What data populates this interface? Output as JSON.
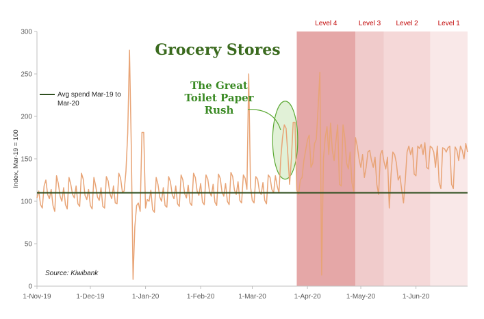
{
  "chart_data": {
    "type": "line",
    "title": "Grocery Stores",
    "ylabel": "Index, Mar-19 = 100",
    "xlabel": "",
    "ylim": [
      0,
      300
    ],
    "yticks": [
      0,
      50,
      100,
      150,
      200,
      250,
      300
    ],
    "x_start": "2019-11-01",
    "x_end": "2020-06-30",
    "xticks": [
      {
        "date": "2019-11-01",
        "label": "1-Nov-19"
      },
      {
        "date": "2019-12-01",
        "label": "1-Dec-19"
      },
      {
        "date": "2020-01-01",
        "label": "1-Jan-20"
      },
      {
        "date": "2020-02-01",
        "label": "1-Feb-20"
      },
      {
        "date": "2020-03-01",
        "label": "1-Mar-20"
      },
      {
        "date": "2020-04-01",
        "label": "1-Apr-20"
      },
      {
        "date": "2020-05-01",
        "label": "1-May-20"
      },
      {
        "date": "2020-06-01",
        "label": "1-Jun-20"
      }
    ],
    "grid": false,
    "series": [
      {
        "name": "",
        "color": "#e8a476",
        "points": [
          [
            "2019-11-01",
            104
          ],
          [
            "2019-11-02",
            112
          ],
          [
            "2019-11-03",
            96
          ],
          [
            "2019-11-04",
            92
          ],
          [
            "2019-11-05",
            118
          ],
          [
            "2019-11-06",
            125
          ],
          [
            "2019-11-07",
            108
          ],
          [
            "2019-11-08",
            103
          ],
          [
            "2019-11-09",
            114
          ],
          [
            "2019-11-10",
            95
          ],
          [
            "2019-11-11",
            88
          ],
          [
            "2019-11-12",
            130
          ],
          [
            "2019-11-13",
            121
          ],
          [
            "2019-11-14",
            106
          ],
          [
            "2019-11-15",
            100
          ],
          [
            "2019-11-16",
            116
          ],
          [
            "2019-11-17",
            96
          ],
          [
            "2019-11-18",
            91
          ],
          [
            "2019-11-19",
            128
          ],
          [
            "2019-11-20",
            120
          ],
          [
            "2019-11-21",
            108
          ],
          [
            "2019-11-22",
            104
          ],
          [
            "2019-11-23",
            118
          ],
          [
            "2019-11-24",
            97
          ],
          [
            "2019-11-25",
            94
          ],
          [
            "2019-11-26",
            133
          ],
          [
            "2019-11-27",
            126
          ],
          [
            "2019-11-28",
            107
          ],
          [
            "2019-11-29",
            102
          ],
          [
            "2019-11-30",
            114
          ],
          [
            "2019-12-01",
            95
          ],
          [
            "2019-12-02",
            91
          ],
          [
            "2019-12-03",
            128
          ],
          [
            "2019-12-04",
            118
          ],
          [
            "2019-12-05",
            105
          ],
          [
            "2019-12-06",
            101
          ],
          [
            "2019-12-07",
            116
          ],
          [
            "2019-12-08",
            94
          ],
          [
            "2019-12-09",
            92
          ],
          [
            "2019-12-10",
            129
          ],
          [
            "2019-12-11",
            124
          ],
          [
            "2019-12-12",
            109
          ],
          [
            "2019-12-13",
            103
          ],
          [
            "2019-12-14",
            118
          ],
          [
            "2019-12-15",
            98
          ],
          [
            "2019-12-16",
            97
          ],
          [
            "2019-12-17",
            133
          ],
          [
            "2019-12-18",
            127
          ],
          [
            "2019-12-19",
            111
          ],
          [
            "2019-12-20",
            112
          ],
          [
            "2019-12-21",
            135
          ],
          [
            "2019-12-22",
            180
          ],
          [
            "2019-12-23",
            278
          ],
          [
            "2019-12-24",
            165
          ],
          [
            "2019-12-25",
            8
          ],
          [
            "2019-12-26",
            70
          ],
          [
            "2019-12-27",
            95
          ],
          [
            "2019-12-28",
            98
          ],
          [
            "2019-12-29",
            88
          ],
          [
            "2019-12-30",
            181
          ],
          [
            "2019-12-31",
            181
          ],
          [
            "2020-01-01",
            92
          ],
          [
            "2020-01-02",
            102
          ],
          [
            "2020-01-03",
            100
          ],
          [
            "2020-01-04",
            113
          ],
          [
            "2020-01-05",
            90
          ],
          [
            "2020-01-06",
            87
          ],
          [
            "2020-01-07",
            128
          ],
          [
            "2020-01-08",
            120
          ],
          [
            "2020-01-09",
            105
          ],
          [
            "2020-01-10",
            100
          ],
          [
            "2020-01-11",
            116
          ],
          [
            "2020-01-12",
            95
          ],
          [
            "2020-01-13",
            93
          ],
          [
            "2020-01-14",
            129
          ],
          [
            "2020-01-15",
            123
          ],
          [
            "2020-01-16",
            108
          ],
          [
            "2020-01-17",
            103
          ],
          [
            "2020-01-18",
            118
          ],
          [
            "2020-01-19",
            97
          ],
          [
            "2020-01-20",
            94
          ],
          [
            "2020-01-21",
            131
          ],
          [
            "2020-01-22",
            125
          ],
          [
            "2020-01-23",
            109
          ],
          [
            "2020-01-24",
            104
          ],
          [
            "2020-01-25",
            119
          ],
          [
            "2020-01-26",
            98
          ],
          [
            "2020-01-27",
            95
          ],
          [
            "2020-01-28",
            133
          ],
          [
            "2020-01-29",
            128
          ],
          [
            "2020-01-30",
            112
          ],
          [
            "2020-01-31",
            107
          ],
          [
            "2020-02-01",
            121
          ],
          [
            "2020-02-02",
            99
          ],
          [
            "2020-02-03",
            96
          ],
          [
            "2020-02-04",
            131
          ],
          [
            "2020-02-05",
            126
          ],
          [
            "2020-02-06",
            111
          ],
          [
            "2020-02-07",
            106
          ],
          [
            "2020-02-08",
            120
          ],
          [
            "2020-02-09",
            99
          ],
          [
            "2020-02-10",
            95
          ],
          [
            "2020-02-11",
            132
          ],
          [
            "2020-02-12",
            127
          ],
          [
            "2020-02-13",
            111
          ],
          [
            "2020-02-14",
            106
          ],
          [
            "2020-02-15",
            121
          ],
          [
            "2020-02-16",
            100
          ],
          [
            "2020-02-17",
            96
          ],
          [
            "2020-02-18",
            134
          ],
          [
            "2020-02-19",
            129
          ],
          [
            "2020-02-20",
            113
          ],
          [
            "2020-02-21",
            108
          ],
          [
            "2020-02-22",
            123
          ],
          [
            "2020-02-23",
            101
          ],
          [
            "2020-02-24",
            98
          ],
          [
            "2020-02-25",
            131
          ],
          [
            "2020-02-26",
            127
          ],
          [
            "2020-02-27",
            114
          ],
          [
            "2020-02-28",
            250
          ],
          [
            "2020-02-29",
            118
          ],
          [
            "2020-03-01",
            101
          ],
          [
            "2020-03-02",
            98
          ],
          [
            "2020-03-03",
            129
          ],
          [
            "2020-03-04",
            126
          ],
          [
            "2020-03-05",
            112
          ],
          [
            "2020-03-06",
            108
          ],
          [
            "2020-03-07",
            122
          ],
          [
            "2020-03-08",
            101
          ],
          [
            "2020-03-09",
            97
          ],
          [
            "2020-03-10",
            131
          ],
          [
            "2020-03-11",
            128
          ],
          [
            "2020-03-12",
            114
          ],
          [
            "2020-03-13",
            110
          ],
          [
            "2020-03-14",
            130
          ],
          [
            "2020-03-15",
            118
          ],
          [
            "2020-03-16",
            110
          ],
          [
            "2020-03-17",
            150
          ],
          [
            "2020-03-18",
            175
          ],
          [
            "2020-03-19",
            190
          ],
          [
            "2020-03-20",
            186
          ],
          [
            "2020-03-21",
            155
          ],
          [
            "2020-03-22",
            120
          ],
          [
            "2020-03-23",
            150
          ],
          [
            "2020-03-24",
            193
          ],
          [
            "2020-03-25",
            193
          ],
          [
            "2020-03-26",
            113
          ],
          [
            "2020-03-27",
            108
          ],
          [
            "2020-03-28",
            125
          ],
          [
            "2020-03-29",
            128
          ],
          [
            "2020-03-30",
            148
          ],
          [
            "2020-03-31",
            160
          ],
          [
            "2020-04-01",
            172
          ],
          [
            "2020-04-02",
            178
          ],
          [
            "2020-04-03",
            140
          ],
          [
            "2020-04-04",
            145
          ],
          [
            "2020-04-05",
            168
          ],
          [
            "2020-04-06",
            173
          ],
          [
            "2020-04-07",
            210
          ],
          [
            "2020-04-08",
            252
          ],
          [
            "2020-04-09",
            13
          ],
          [
            "2020-04-10",
            150
          ],
          [
            "2020-04-11",
            175
          ],
          [
            "2020-04-12",
            188
          ],
          [
            "2020-04-13",
            155
          ],
          [
            "2020-04-14",
            192
          ],
          [
            "2020-04-15",
            160
          ],
          [
            "2020-04-16",
            148
          ],
          [
            "2020-04-17",
            170
          ],
          [
            "2020-04-18",
            190
          ],
          [
            "2020-04-19",
            120
          ],
          [
            "2020-04-20",
            118
          ],
          [
            "2020-04-21",
            190
          ],
          [
            "2020-04-22",
            175
          ],
          [
            "2020-04-23",
            145
          ],
          [
            "2020-04-24",
            138
          ],
          [
            "2020-04-25",
            158
          ],
          [
            "2020-04-26",
            122
          ],
          [
            "2020-04-27",
            112
          ],
          [
            "2020-04-28",
            175
          ],
          [
            "2020-04-29",
            165
          ],
          [
            "2020-04-30",
            150
          ],
          [
            "2020-05-01",
            140
          ],
          [
            "2020-05-02",
            155
          ],
          [
            "2020-05-03",
            128
          ],
          [
            "2020-05-04",
            140
          ],
          [
            "2020-05-05",
            158
          ],
          [
            "2020-05-06",
            160
          ],
          [
            "2020-05-07",
            148
          ],
          [
            "2020-05-08",
            140
          ],
          [
            "2020-05-09",
            152
          ],
          [
            "2020-05-10",
            120
          ],
          [
            "2020-05-11",
            108
          ],
          [
            "2020-05-12",
            155
          ],
          [
            "2020-05-13",
            160
          ],
          [
            "2020-05-14",
            147
          ],
          [
            "2020-05-15",
            138
          ],
          [
            "2020-05-16",
            152
          ],
          [
            "2020-05-17",
            92
          ],
          [
            "2020-05-18",
            132
          ],
          [
            "2020-05-19",
            158
          ],
          [
            "2020-05-20",
            155
          ],
          [
            "2020-05-21",
            145
          ],
          [
            "2020-05-22",
            125
          ],
          [
            "2020-05-23",
            130
          ],
          [
            "2020-05-24",
            113
          ],
          [
            "2020-05-25",
            98
          ],
          [
            "2020-05-26",
            125
          ],
          [
            "2020-05-27",
            158
          ],
          [
            "2020-05-28",
            165
          ],
          [
            "2020-05-29",
            155
          ],
          [
            "2020-05-30",
            163
          ],
          [
            "2020-05-31",
            132
          ],
          [
            "2020-06-01",
            130
          ],
          [
            "2020-06-02",
            165
          ],
          [
            "2020-06-03",
            162
          ],
          [
            "2020-06-04",
            167
          ],
          [
            "2020-06-05",
            155
          ],
          [
            "2020-06-06",
            169
          ],
          [
            "2020-06-07",
            140
          ],
          [
            "2020-06-08",
            138
          ],
          [
            "2020-06-09",
            165
          ],
          [
            "2020-06-10",
            163
          ],
          [
            "2020-06-11",
            158
          ],
          [
            "2020-06-12",
            140
          ],
          [
            "2020-06-13",
            165
          ],
          [
            "2020-06-14",
            122
          ],
          [
            "2020-06-15",
            115
          ],
          [
            "2020-06-16",
            163
          ],
          [
            "2020-06-17",
            162
          ],
          [
            "2020-06-18",
            158
          ],
          [
            "2020-06-19",
            163
          ],
          [
            "2020-06-20",
            165
          ],
          [
            "2020-06-21",
            120
          ],
          [
            "2020-06-22",
            115
          ],
          [
            "2020-06-23",
            164
          ],
          [
            "2020-06-24",
            160
          ],
          [
            "2020-06-25",
            148
          ],
          [
            "2020-06-26",
            165
          ],
          [
            "2020-06-27",
            160
          ],
          [
            "2020-06-28",
            150
          ],
          [
            "2020-06-29",
            168
          ],
          [
            "2020-06-30",
            158
          ]
        ]
      }
    ],
    "reference_line": {
      "label": "Avg spend Mar-19 to Mar-20",
      "value": 110,
      "color": "#2f4f1f"
    },
    "shaded_regions": [
      {
        "label": "Level 4",
        "start": "2020-03-26",
        "end": "2020-04-27",
        "color": "#e5a7a7"
      },
      {
        "label": "Level 3",
        "start": "2020-04-28",
        "end": "2020-05-13",
        "color": "#f0cbcb"
      },
      {
        "label": "Level 2",
        "start": "2020-05-14",
        "end": "2020-06-08",
        "color": "#f5d8d8"
      },
      {
        "label": "Level 1",
        "start": "2020-06-09",
        "end": "2020-06-30",
        "color": "#f9e8e8"
      }
    ],
    "annotation": {
      "lines": [
        "The Great",
        "Toilet Paper",
        "Rush"
      ],
      "highlight_start": "2020-03-14",
      "highlight_end": "2020-03-25",
      "color": "#5aa832"
    },
    "legend": {
      "placement": "top-left",
      "entry": "Avg spend Mar-19 to Mar-20"
    },
    "source": "Source: Kiwibank"
  }
}
